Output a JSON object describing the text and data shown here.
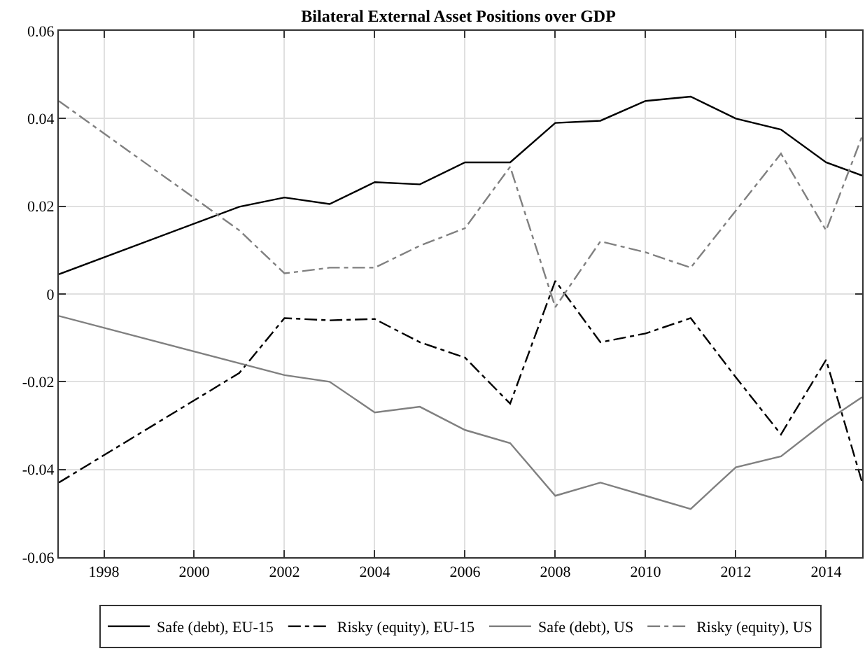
{
  "chart_data": {
    "type": "line",
    "title": "Bilateral External Asset Positions over GDP",
    "series": [
      {
        "name": "Safe (debt), EU-15",
        "color": "#000000",
        "line_style": "solid",
        "x": [
          1997,
          2001,
          2002,
          2003,
          2004,
          2005,
          2006,
          2007,
          2008,
          2009,
          2010,
          2011,
          2012,
          2013,
          2014,
          2014.8
        ],
        "values": [
          0.0045,
          0.0199,
          0.022,
          0.0205,
          0.0255,
          0.025,
          0.03,
          0.03,
          0.039,
          0.0395,
          0.044,
          0.045,
          0.04,
          0.0375,
          0.03,
          0.027
        ]
      },
      {
        "name": "Risky (equity), EU-15",
        "color": "#000000",
        "line_style": "dashdot",
        "x": [
          1997,
          2001,
          2002,
          2003,
          2004,
          2005,
          2006,
          2007,
          2008,
          2009,
          2010,
          2011,
          2012,
          2013,
          2014,
          2014.8
        ],
        "values": [
          -0.043,
          -0.018,
          -0.0055,
          -0.006,
          -0.0057,
          -0.011,
          -0.0145,
          -0.025,
          0.003,
          -0.011,
          -0.009,
          -0.0055,
          -0.019,
          -0.032,
          -0.015,
          -0.043
        ]
      },
      {
        "name": "Safe (debt), US",
        "color": "#808080",
        "line_style": "solid",
        "x": [
          1997,
          2002,
          2003,
          2004,
          2005,
          2006,
          2007,
          2008,
          2009,
          2010,
          2011,
          2012,
          2013,
          2014,
          2014.8
        ],
        "values": [
          -0.005,
          -0.0185,
          -0.02,
          -0.027,
          -0.0257,
          -0.031,
          -0.034,
          -0.046,
          -0.043,
          -0.046,
          -0.049,
          -0.0395,
          -0.037,
          -0.029,
          -0.0235
        ]
      },
      {
        "name": "Risky (equity), US",
        "color": "#808080",
        "line_style": "dashdot",
        "x": [
          1997,
          2001,
          2002,
          2003,
          2004,
          2005,
          2006,
          2007,
          2008,
          2009,
          2010,
          2011,
          2012,
          2013,
          2014,
          2014.8
        ],
        "values": [
          0.044,
          0.0145,
          0.0047,
          0.006,
          0.006,
          0.011,
          0.015,
          0.029,
          -0.003,
          0.012,
          0.0095,
          0.006,
          0.019,
          0.032,
          0.0145,
          0.036
        ]
      }
    ],
    "xlim": [
      1997,
      2014.8
    ],
    "xticks": [
      1998,
      2000,
      2002,
      2004,
      2006,
      2008,
      2010,
      2012,
      2014
    ],
    "ylim": [
      -0.06,
      0.06
    ],
    "yticks": [
      -0.06,
      -0.04,
      -0.02,
      0,
      0.02,
      0.04,
      0.06
    ],
    "grid": true,
    "legend": "bottom",
    "marker": "none"
  }
}
